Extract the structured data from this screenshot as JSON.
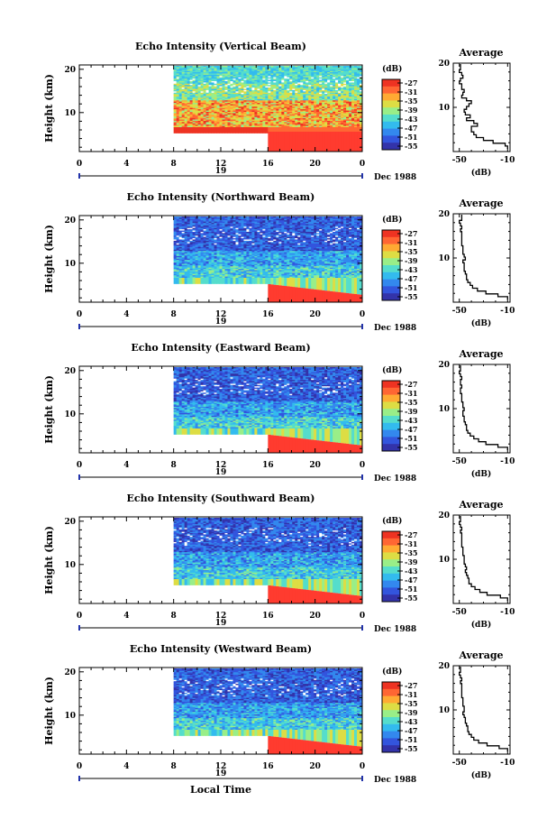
{
  "figure": {
    "xaxis_label": "Local Time",
    "date_label": "Dec 1988",
    "colorbar_label": "(dB)",
    "colorbar_ticks": [
      "-27",
      "-31",
      "-35",
      "-39",
      "-43",
      "-47",
      "-51",
      "-55"
    ],
    "avg_title": "Average",
    "avg_xlabel": "(dB)",
    "avg_xticks": [
      "-50",
      "-10"
    ],
    "avg_yticks": [
      "20",
      "10"
    ],
    "ylabel": "Height (km)",
    "yticks": [
      "20",
      "10"
    ],
    "xticks": [
      "0",
      "4",
      "8",
      "12",
      "16",
      "20",
      "0"
    ],
    "day_marker": "19"
  },
  "colormap": [
    "#3333aa",
    "#3355dd",
    "#3388ee",
    "#33bbee",
    "#55ddcc",
    "#99ee88",
    "#dddd44",
    "#ffaa33",
    "#ff6633",
    "#ee3322"
  ],
  "chart_data": [
    {
      "type": "heatmap",
      "title": "Echo Intensity (Vertical Beam)",
      "xlabel": "Local Time",
      "ylabel": "Height (km)",
      "x_range_hours": [
        0,
        24
      ],
      "y_range_km": [
        1,
        21
      ],
      "data_start_hour": 8,
      "clutter_start_hour": 16,
      "colorbar_range_db": [
        -57,
        -25
      ],
      "grid": false,
      "profile_db": [
        -10,
        -12,
        -22,
        -30,
        -36,
        -38,
        -40,
        -40,
        -35,
        -38,
        -44,
        -41,
        -45,
        -46,
        -44,
        -42,
        -40,
        -44,
        -48,
        -47,
        -46,
        -48,
        -48,
        -50,
        -49,
        -47,
        -48,
        -50,
        -49,
        -49
      ],
      "average": {
        "title": "Average",
        "xlim": [
          -55,
          -8
        ],
        "ylim": [
          0,
          20
        ],
        "x_ticks": [
          -50,
          -10
        ],
        "y_ticks": [
          10,
          20
        ]
      }
    },
    {
      "type": "heatmap",
      "title": "Echo Intensity (Northward Beam)",
      "xlabel": "Local Time",
      "ylabel": "Height (km)",
      "x_range_hours": [
        0,
        24
      ],
      "y_range_km": [
        1,
        21
      ],
      "data_start_hour": 8,
      "clutter_start_hour": 16,
      "colorbar_range_db": [
        -57,
        -25
      ],
      "grid": false,
      "profile_db": [
        -10,
        -18,
        -28,
        -35,
        -39,
        -41,
        -43,
        -44,
        -44,
        -45,
        -46,
        -46,
        -46,
        -47,
        -45,
        -46,
        -47,
        -47,
        -47,
        -48,
        -48,
        -48,
        -48,
        -48,
        -49,
        -48,
        -49,
        -50,
        -48,
        -48
      ],
      "average": {
        "title": "Average",
        "xlim": [
          -55,
          -8
        ],
        "ylim": [
          0,
          20
        ],
        "x_ticks": [
          -50,
          -10
        ],
        "y_ticks": [
          10,
          20
        ]
      }
    },
    {
      "type": "heatmap",
      "title": "Echo Intensity (Eastward Beam)",
      "xlabel": "Local Time",
      "ylabel": "Height (km)",
      "x_range_hours": [
        0,
        24
      ],
      "y_range_km": [
        1,
        21
      ],
      "data_start_hour": 8,
      "clutter_start_hour": 16,
      "colorbar_range_db": [
        -57,
        -25
      ],
      "grid": false,
      "profile_db": [
        -10,
        -18,
        -28,
        -34,
        -38,
        -41,
        -43,
        -44,
        -44,
        -45,
        -46,
        -46,
        -47,
        -47,
        -46,
        -47,
        -47,
        -48,
        -48,
        -48,
        -49,
        -49,
        -48,
        -49,
        -49,
        -48,
        -49,
        -50,
        -49,
        -49
      ],
      "average": {
        "title": "Average",
        "xlim": [
          -55,
          -8
        ],
        "ylim": [
          0,
          20
        ],
        "x_ticks": [
          -50,
          -10
        ],
        "y_ticks": [
          10,
          20
        ]
      }
    },
    {
      "type": "heatmap",
      "title": "Echo Intensity (Southward Beam)",
      "xlabel": "Local Time",
      "ylabel": "Height (km)",
      "x_range_hours": [
        0,
        24
      ],
      "y_range_km": [
        1,
        21
      ],
      "data_start_hour": 8,
      "clutter_start_hour": 16,
      "colorbar_range_db": [
        -57,
        -25
      ],
      "grid": false,
      "profile_db": [
        -10,
        -16,
        -27,
        -33,
        -37,
        -40,
        -42,
        -42,
        -43,
        -44,
        -45,
        -44,
        -45,
        -46,
        -46,
        -46,
        -47,
        -47,
        -47,
        -48,
        -48,
        -48,
        -48,
        -48,
        -49,
        -48,
        -49,
        -50,
        -49,
        -49
      ],
      "average": {
        "title": "Average",
        "xlim": [
          -55,
          -8
        ],
        "ylim": [
          0,
          20
        ],
        "x_ticks": [
          -50,
          -10
        ],
        "y_ticks": [
          10,
          20
        ]
      }
    },
    {
      "type": "heatmap",
      "title": "Echo Intensity (Westward Beam)",
      "xlabel": "Local Time",
      "ylabel": "Height (km)",
      "x_range_hours": [
        0,
        24
      ],
      "y_range_km": [
        1,
        21
      ],
      "data_start_hour": 8,
      "clutter_start_hour": 16,
      "colorbar_range_db": [
        -57,
        -25
      ],
      "grid": false,
      "profile_db": [
        -10,
        -17,
        -27,
        -34,
        -38,
        -40,
        -42,
        -43,
        -43,
        -44,
        -45,
        -45,
        -46,
        -47,
        -46,
        -46,
        -47,
        -47,
        -47,
        -48,
        -48,
        -48,
        -48,
        -48,
        -49,
        -48,
        -49,
        -50,
        -49,
        -49
      ],
      "average": {
        "title": "Average",
        "xlim": [
          -55,
          -8
        ],
        "ylim": [
          0,
          20
        ],
        "x_ticks": [
          -50,
          -10
        ],
        "y_ticks": [
          10,
          20
        ]
      }
    }
  ]
}
